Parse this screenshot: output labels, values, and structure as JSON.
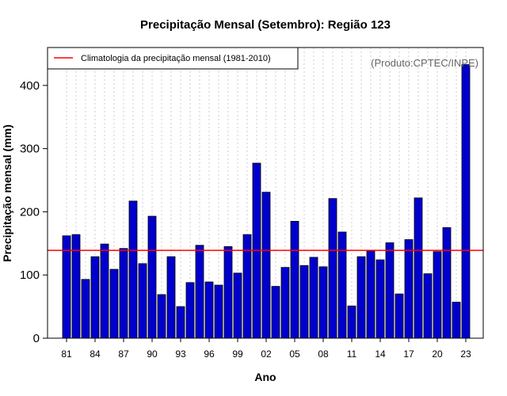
{
  "chart_data": {
    "type": "bar",
    "title": "Precipitação Mensal (Setembro): Região 123",
    "xlabel": "Ano",
    "ylabel": "Precipitação mensal (mm)",
    "ylim": [
      0,
      460
    ],
    "yticks": [
      0,
      100,
      200,
      300,
      400
    ],
    "x": [
      "1981",
      "1982",
      "1983",
      "1984",
      "1985",
      "1986",
      "1987",
      "1988",
      "1989",
      "1990",
      "1991",
      "1992",
      "1993",
      "1994",
      "1995",
      "1996",
      "1997",
      "1998",
      "1999",
      "2000",
      "2001",
      "2002",
      "2003",
      "2004",
      "2005",
      "2006",
      "2007",
      "2008",
      "2009",
      "2010",
      "2011",
      "2012",
      "2013",
      "2014",
      "2015",
      "2016",
      "2017",
      "2018",
      "2019",
      "2020",
      "2021",
      "2022",
      "2023"
    ],
    "xtick_labels": [
      "81",
      "84",
      "87",
      "90",
      "93",
      "96",
      "99",
      "02",
      "05",
      "08",
      "11",
      "14",
      "17",
      "20",
      "23"
    ],
    "series": [
      {
        "name": "Precipitação mensal",
        "color": "#0000CD",
        "values": [
          162,
          164,
          93,
          129,
          149,
          109,
          142,
          217,
          118,
          193,
          69,
          129,
          50,
          88,
          147,
          89,
          84,
          145,
          103,
          164,
          277,
          231,
          82,
          112,
          185,
          115,
          128,
          113,
          221,
          168,
          51,
          129,
          138,
          124,
          151,
          70,
          156,
          222,
          102,
          137,
          175,
          57,
          433
        ]
      }
    ],
    "reference_line": {
      "label": "Climatologia da precipitação mensal (1981-2010)",
      "value": 139,
      "color": "#FF0000"
    },
    "legend": {
      "position": "top-left",
      "entries": [
        "Climatologia da precipitação mensal (1981-2010)"
      ]
    },
    "annotation": "(Produto:CPTEC/INPE)",
    "grid": {
      "vertical": true,
      "color": "#cccccc"
    }
  }
}
